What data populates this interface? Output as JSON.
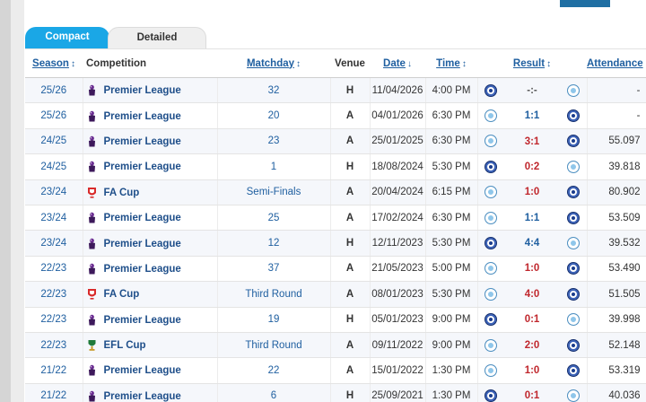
{
  "tabs": [
    {
      "label": "Compact",
      "active": true
    },
    {
      "label": "Detailed",
      "active": false
    }
  ],
  "columns": {
    "season": "Season",
    "competition": "Competition",
    "matchday": "Matchday",
    "venue": "Venue",
    "date": "Date",
    "time": "Time",
    "result": "Result",
    "attendance": "Attendance"
  },
  "sort_icons": {
    "season": "↕",
    "matchday": "↕",
    "date": "↓",
    "time": "↕",
    "result": "↕",
    "attendance": "↕"
  },
  "colors": {
    "accent": "#1aa7e6",
    "link": "#1f5fa0",
    "win": "#1f4f8a",
    "loss": "#c0272d",
    "draw": "#1f5fa0"
  },
  "rows": [
    {
      "season": "25/26",
      "competition": "Premier League",
      "comp_icon": "premier-league",
      "matchday": "32",
      "venue": "H",
      "date": "11/04/2026",
      "time": "4:00 PM",
      "home": "chelsea",
      "result": "-:-",
      "result_color": "#555555",
      "away": "man-city",
      "attendance": "-"
    },
    {
      "season": "25/26",
      "competition": "Premier League",
      "comp_icon": "premier-league",
      "matchday": "20",
      "venue": "A",
      "date": "04/01/2026",
      "time": "6:30 PM",
      "home": "man-city",
      "result": "1:1",
      "result_color": "#1f5fa0",
      "away": "chelsea",
      "attendance": "-"
    },
    {
      "season": "24/25",
      "competition": "Premier League",
      "comp_icon": "premier-league",
      "matchday": "23",
      "venue": "A",
      "date": "25/01/2025",
      "time": "6:30 PM",
      "home": "man-city",
      "result": "3:1",
      "result_color": "#c0272d",
      "away": "chelsea",
      "attendance": "55.097"
    },
    {
      "season": "24/25",
      "competition": "Premier League",
      "comp_icon": "premier-league",
      "matchday": "1",
      "venue": "H",
      "date": "18/08/2024",
      "time": "5:30 PM",
      "home": "chelsea",
      "result": "0:2",
      "result_color": "#c0272d",
      "away": "man-city",
      "attendance": "39.818"
    },
    {
      "season": "23/24",
      "competition": "FA Cup",
      "comp_icon": "fa-cup",
      "matchday": "Semi-Finals",
      "venue": "A",
      "date": "20/04/2024",
      "time": "6:15 PM",
      "home": "man-city",
      "result": "1:0",
      "result_color": "#c0272d",
      "away": "chelsea",
      "attendance": "80.902"
    },
    {
      "season": "23/24",
      "competition": "Premier League",
      "comp_icon": "premier-league",
      "matchday": "25",
      "venue": "A",
      "date": "17/02/2024",
      "time": "6:30 PM",
      "home": "man-city",
      "result": "1:1",
      "result_color": "#1f5fa0",
      "away": "chelsea",
      "attendance": "53.509"
    },
    {
      "season": "23/24",
      "competition": "Premier League",
      "comp_icon": "premier-league",
      "matchday": "12",
      "venue": "H",
      "date": "12/11/2023",
      "time": "5:30 PM",
      "home": "chelsea",
      "result": "4:4",
      "result_color": "#1f5fa0",
      "away": "man-city",
      "attendance": "39.532"
    },
    {
      "season": "22/23",
      "competition": "Premier League",
      "comp_icon": "premier-league",
      "matchday": "37",
      "venue": "A",
      "date": "21/05/2023",
      "time": "5:00 PM",
      "home": "man-city",
      "result": "1:0",
      "result_color": "#c0272d",
      "away": "chelsea",
      "attendance": "53.490"
    },
    {
      "season": "22/23",
      "competition": "FA Cup",
      "comp_icon": "fa-cup",
      "matchday": "Third Round",
      "venue": "A",
      "date": "08/01/2023",
      "time": "5:30 PM",
      "home": "man-city",
      "result": "4:0",
      "result_color": "#c0272d",
      "away": "chelsea",
      "attendance": "51.505"
    },
    {
      "season": "22/23",
      "competition": "Premier League",
      "comp_icon": "premier-league",
      "matchday": "19",
      "venue": "H",
      "date": "05/01/2023",
      "time": "9:00 PM",
      "home": "chelsea",
      "result": "0:1",
      "result_color": "#c0272d",
      "away": "man-city",
      "attendance": "39.998"
    },
    {
      "season": "22/23",
      "competition": "EFL Cup",
      "comp_icon": "efl-cup",
      "matchday": "Third Round",
      "venue": "A",
      "date": "09/11/2022",
      "time": "9:00 PM",
      "home": "man-city",
      "result": "2:0",
      "result_color": "#c0272d",
      "away": "chelsea",
      "attendance": "52.148"
    },
    {
      "season": "21/22",
      "competition": "Premier League",
      "comp_icon": "premier-league",
      "matchday": "22",
      "venue": "A",
      "date": "15/01/2022",
      "time": "1:30 PM",
      "home": "man-city",
      "result": "1:0",
      "result_color": "#c0272d",
      "away": "chelsea",
      "attendance": "53.319"
    },
    {
      "season": "21/22",
      "competition": "Premier League",
      "comp_icon": "premier-league",
      "matchday": "6",
      "venue": "H",
      "date": "25/09/2021",
      "time": "1:30 PM",
      "home": "chelsea",
      "result": "0:1",
      "result_color": "#c0272d",
      "away": "man-city",
      "attendance": "40.036"
    }
  ]
}
